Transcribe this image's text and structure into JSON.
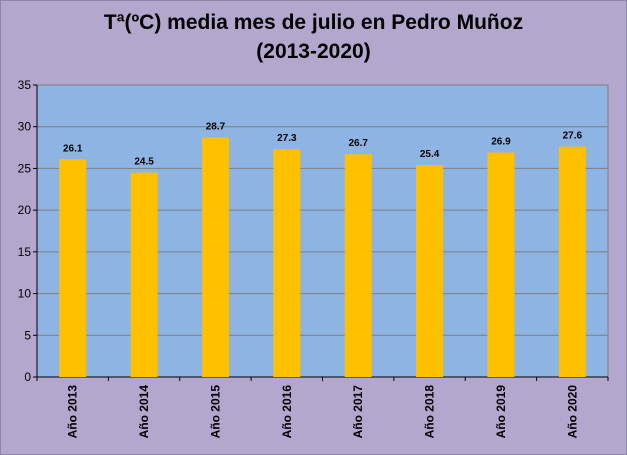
{
  "chart_data": {
    "type": "bar",
    "title_lines": [
      "Tª(ºC) media mes de julio en Pedro Muñoz",
      "(2013-2020)"
    ],
    "categories": [
      "Año 2013",
      "Año 2014",
      "Año 2015",
      "Año 2016",
      "Año 2017",
      "Año 2018",
      "Año 2019",
      "Año 2020"
    ],
    "values": [
      26.1,
      24.5,
      28.7,
      27.3,
      26.7,
      25.4,
      26.9,
      27.6
    ],
    "value_labels": [
      "26.1",
      "24.5",
      "28.7",
      "27.3",
      "26.7",
      "25.4",
      "26.9",
      "27.6"
    ],
    "ylim": [
      0,
      35
    ],
    "yticks": [
      0,
      5,
      10,
      15,
      20,
      25,
      30,
      35
    ],
    "grid": true,
    "legend": "none",
    "colors": {
      "background": "#b4a7cd",
      "plot_area": "#8db4e2",
      "bar": "#ffc000",
      "gridline": "#7f7f7f"
    }
  }
}
